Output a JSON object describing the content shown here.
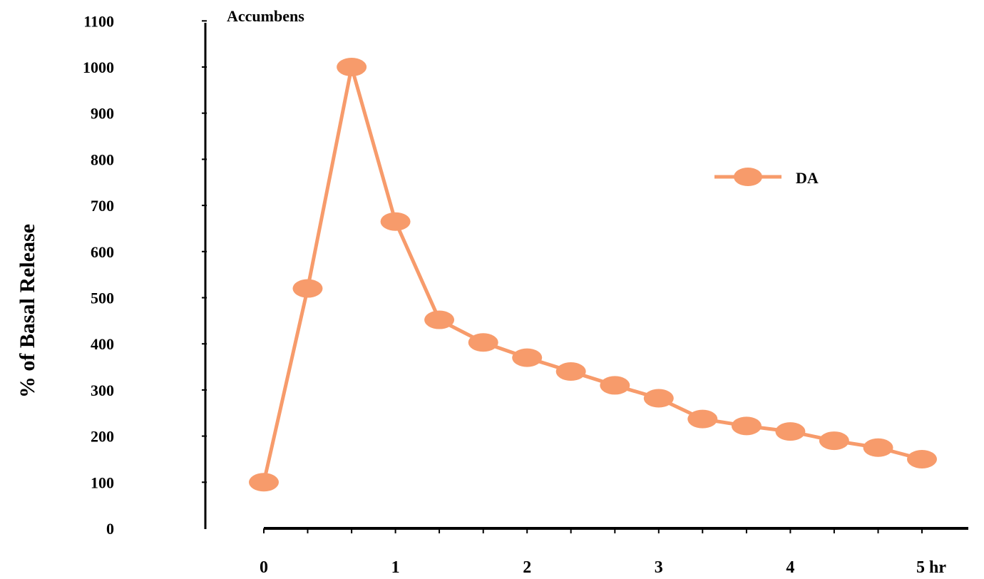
{
  "chart_data": {
    "type": "line",
    "title": "Accumbens",
    "ylabel": "% of Basal Release",
    "xlabel": "",
    "ylim": [
      0,
      1100
    ],
    "yticks": [
      0,
      100,
      200,
      300,
      400,
      500,
      600,
      700,
      800,
      900,
      1000,
      1100
    ],
    "xticks": [
      "0",
      "1",
      "2",
      "3",
      "4",
      "5 hr"
    ],
    "xlim": [
      0,
      5
    ],
    "grid": false,
    "legend_position": "top-right",
    "series": [
      {
        "name": "DA",
        "color": "#F79B6B",
        "x": [
          0,
          0.333,
          0.667,
          1,
          1.333,
          1.667,
          2,
          2.333,
          2.667,
          3,
          3.333,
          3.667,
          4,
          4.333,
          4.667,
          5
        ],
        "values": [
          100,
          520,
          1000,
          665,
          452,
          403,
          370,
          340,
          310,
          282,
          237,
          222,
          210,
          190,
          175,
          150
        ]
      }
    ]
  }
}
